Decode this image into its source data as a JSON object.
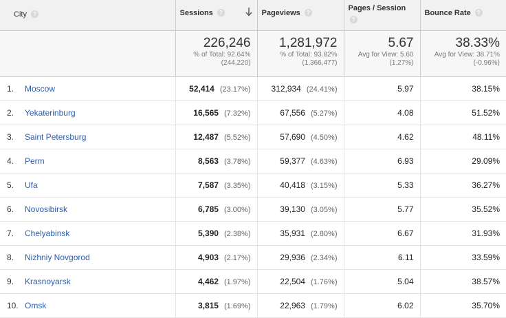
{
  "headers": {
    "city": "City",
    "sessions": "Sessions",
    "pageviews": "Pageviews",
    "pages_per_session": "Pages / Session",
    "bounce_rate": "Bounce Rate"
  },
  "totals": {
    "sessions": {
      "value": "226,246",
      "line1": "% of Total: 92.64%",
      "line2": "(244,220)"
    },
    "pageviews": {
      "value": "1,281,972",
      "line1": "% of Total: 93.82%",
      "line2": "(1,366,477)"
    },
    "pages_per_session": {
      "value": "5.67",
      "line1": "Avg for View: 5.60",
      "line2": "(1.27%)"
    },
    "bounce_rate": {
      "value": "38.33%",
      "line1": "Avg for View: 38.71%",
      "line2": "(-0.96%)"
    }
  },
  "rows": [
    {
      "rank": "1.",
      "city": "Moscow",
      "sessions": "52,414",
      "sessions_pct": "(23.17%)",
      "pageviews": "312,934",
      "pageviews_pct": "(24.41%)",
      "pps": "5.97",
      "bounce": "38.15%"
    },
    {
      "rank": "2.",
      "city": "Yekaterinburg",
      "sessions": "16,565",
      "sessions_pct": "(7.32%)",
      "pageviews": "67,556",
      "pageviews_pct": "(5.27%)",
      "pps": "4.08",
      "bounce": "51.52%"
    },
    {
      "rank": "3.",
      "city": "Saint Petersburg",
      "sessions": "12,487",
      "sessions_pct": "(5.52%)",
      "pageviews": "57,690",
      "pageviews_pct": "(4.50%)",
      "pps": "4.62",
      "bounce": "48.11%"
    },
    {
      "rank": "4.",
      "city": "Perm",
      "sessions": "8,563",
      "sessions_pct": "(3.78%)",
      "pageviews": "59,377",
      "pageviews_pct": "(4.63%)",
      "pps": "6.93",
      "bounce": "29.09%"
    },
    {
      "rank": "5.",
      "city": "Ufa",
      "sessions": "7,587",
      "sessions_pct": "(3.35%)",
      "pageviews": "40,418",
      "pageviews_pct": "(3.15%)",
      "pps": "5.33",
      "bounce": "36.27%"
    },
    {
      "rank": "6.",
      "city": "Novosibirsk",
      "sessions": "6,785",
      "sessions_pct": "(3.00%)",
      "pageviews": "39,130",
      "pageviews_pct": "(3.05%)",
      "pps": "5.77",
      "bounce": "35.52%"
    },
    {
      "rank": "7.",
      "city": "Chelyabinsk",
      "sessions": "5,390",
      "sessions_pct": "(2.38%)",
      "pageviews": "35,931",
      "pageviews_pct": "(2.80%)",
      "pps": "6.67",
      "bounce": "31.93%"
    },
    {
      "rank": "8.",
      "city": "Nizhniy Novgorod",
      "sessions": "4,903",
      "sessions_pct": "(2.17%)",
      "pageviews": "29,936",
      "pageviews_pct": "(2.34%)",
      "pps": "6.11",
      "bounce": "33.59%"
    },
    {
      "rank": "9.",
      "city": "Krasnoyarsk",
      "sessions": "4,462",
      "sessions_pct": "(1.97%)",
      "pageviews": "22,504",
      "pageviews_pct": "(1.76%)",
      "pps": "5.04",
      "bounce": "38.57%"
    },
    {
      "rank": "10.",
      "city": "Omsk",
      "sessions": "3,815",
      "sessions_pct": "(1.69%)",
      "pageviews": "22,963",
      "pageviews_pct": "(1.79%)",
      "pps": "6.02",
      "bounce": "35.70%"
    }
  ],
  "icons": {
    "help": "question-mark-icon",
    "sort": "sort-descending-arrow-icon"
  },
  "colors": {
    "link": "#2a5db0",
    "header_bg": "#f1f1f1"
  }
}
